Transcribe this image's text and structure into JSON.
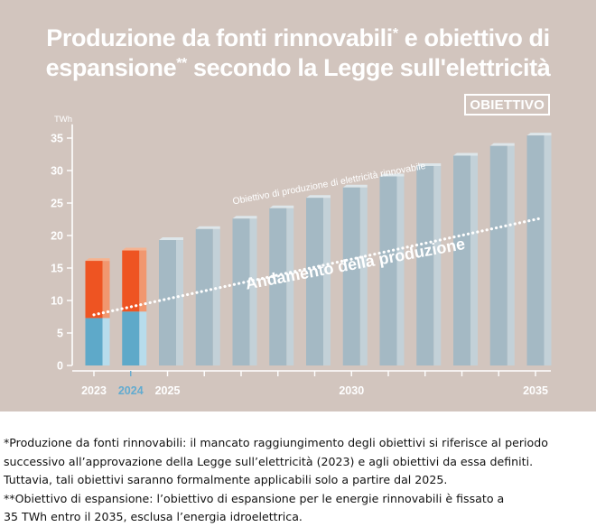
{
  "title": {
    "line1_text": "Produzione da fonti rinnovabili",
    "line1_mark": "*",
    "line1_rest": " e obiettivo di",
    "line2_text": "espansione",
    "line2_mark": "**",
    "line2_rest": " secondo la Legge sull'elettricità"
  },
  "badge": "OBIETTIVO",
  "chart_data": {
    "type": "bar",
    "unit_label": "TWh",
    "ylim": [
      0,
      36
    ],
    "yticks": [
      "0",
      "5",
      "10",
      "15",
      "20",
      "25",
      "30",
      "35"
    ],
    "x_years": [
      2023,
      2024,
      2025,
      2026,
      2027,
      2028,
      2029,
      2030,
      2031,
      2032,
      2033,
      2034,
      2035
    ],
    "x_tick_labels": [
      {
        "year": 2023,
        "label": "2023"
      },
      {
        "year": 2024,
        "label": "2024"
      },
      {
        "year": 2025,
        "label": "2025"
      },
      {
        "year": 2030,
        "label": "2030"
      },
      {
        "year": 2035,
        "label": "2035"
      }
    ],
    "highlight_year": 2024,
    "actual_years": [
      2023,
      2024
    ],
    "actual_total": [
      16.1,
      17.7
    ],
    "actual_base": [
      7.3,
      8.3
    ],
    "target_years": [
      2025,
      2026,
      2027,
      2028,
      2029,
      2030,
      2031,
      2032,
      2033,
      2034,
      2035
    ],
    "target_values": [
      19.3,
      21.0,
      22.6,
      24.2,
      25.8,
      27.4,
      29.1,
      30.7,
      32.3,
      33.8,
      35.4
    ],
    "trend_line": {
      "label": "Andamento della produzione",
      "from": [
        2023,
        7.8
      ],
      "to": [
        2035,
        22.6
      ]
    },
    "target_line_label": "Obiettivo di produzione di elettricità rinnovabile",
    "grid": false,
    "colors": {
      "background": "#d2c5be",
      "target_bar": "#a4b9c4",
      "target_bar_side": "#c3d1d8",
      "actual_upper": "#ee5422",
      "actual_base": "#5ea9c9",
      "highlight_tick": "#62abd0",
      "axis": "#ffffff"
    }
  },
  "footnotes": [
    " *Produzione da fonti rinnovabili: il mancato raggiungimento degli obiettivi si riferisce al periodo",
    "successivo all’approvazione della Legge sull’elettricità (2023) e agli obiettivi da essa definiti.",
    "Tuttavia, tali obiettivi saranno formalmente applicabili solo a partire dal 2025.",
    "**Obiettivo di espansione: l’obiettivo di espansione per le energie rinnovabili è fissato a",
    "35 TWh entro il 2035, esclusa l’energia idroelettrica."
  ]
}
